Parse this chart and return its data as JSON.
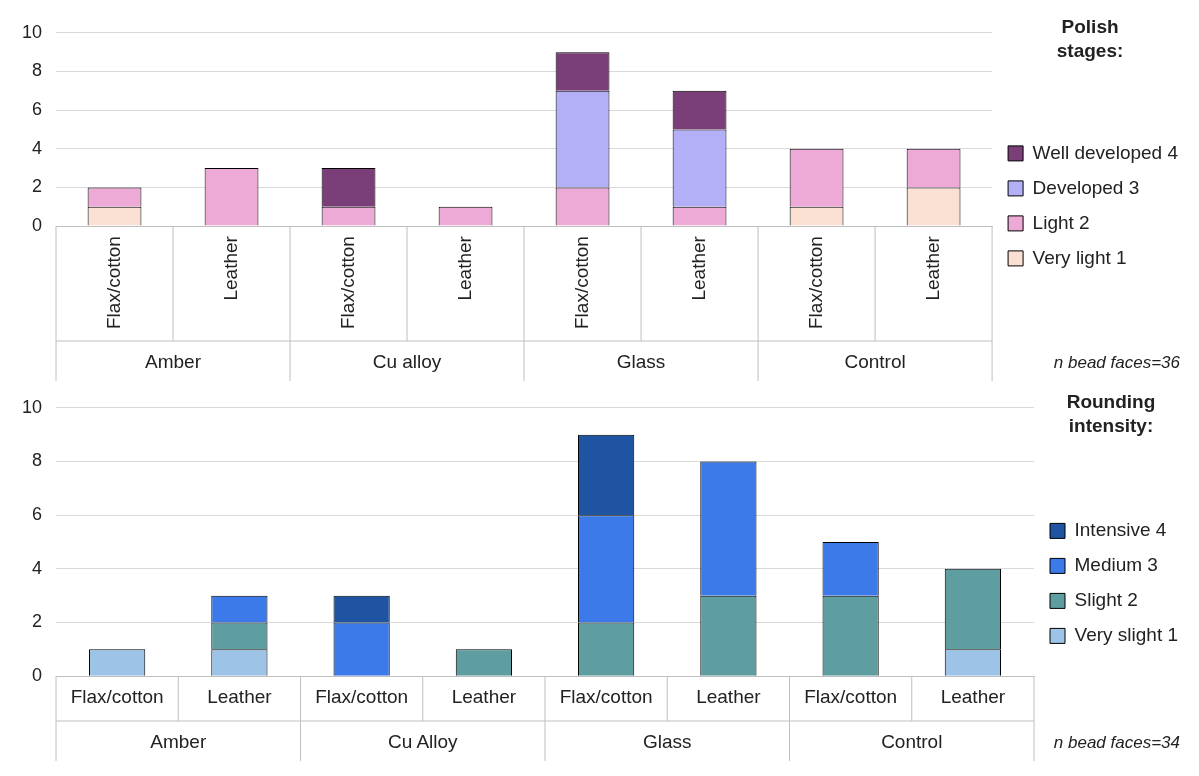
{
  "chart_data": [
    {
      "type": "bar",
      "stacked": true,
      "categories": [
        "Flax/cotton",
        "Leather",
        "Flax/cotton",
        "Leather",
        "Flax/cotton",
        "Leather",
        "Flax/cotton",
        "Leather"
      ],
      "series": [
        {
          "name": "Very light 1",
          "color": "#f9e0d2",
          "values": [
            1,
            0,
            0,
            0,
            0,
            0,
            1,
            2
          ]
        },
        {
          "name": "Light 2",
          "color": "#eeaad6",
          "values": [
            1,
            3,
            1,
            1,
            2,
            1,
            3,
            2
          ]
        },
        {
          "name": "Developed 3",
          "color": "#b3b0f7",
          "values": [
            0,
            0,
            0,
            0,
            5,
            4,
            0,
            0
          ]
        },
        {
          "name": "Well developed 4",
          "color": "#7a3f78",
          "values": [
            0,
            0,
            2,
            0,
            2,
            2,
            0,
            0
          ]
        }
      ],
      "ylim": [
        0,
        10
      ],
      "yticks": [
        0,
        2,
        4,
        6,
        8,
        10
      ],
      "grid": "y",
      "legend": "right",
      "legend_title": "Polish stages:",
      "annotations": [
        "Amber",
        "Cu alloy",
        "Glass",
        "Control",
        "n bead faces=36"
      ]
    },
    {
      "type": "bar",
      "stacked": true,
      "categories": [
        "Flax/cotton",
        "Leather",
        "Flax/cotton",
        "Leather",
        "Flax/cotton",
        "Leather",
        "Flax/cotton",
        "Leather"
      ],
      "series": [
        {
          "name": "Very slight 1",
          "color": "#9dc3e6",
          "values": [
            1,
            1,
            0,
            0,
            0,
            0,
            0,
            1
          ]
        },
        {
          "name": "Slight 2",
          "color": "#5f9ea0",
          "values": [
            0,
            1,
            0,
            1,
            2,
            3,
            3,
            3
          ]
        },
        {
          "name": "Medium 3",
          "color": "#3b7ae8",
          "values": [
            0,
            1,
            2,
            0,
            4,
            5,
            2,
            0
          ]
        },
        {
          "name": "Intensive 4",
          "color": "#1f54a3",
          "values": [
            0,
            0,
            1,
            0,
            3,
            0,
            0,
            0
          ]
        }
      ],
      "ylim": [
        0,
        10
      ],
      "yticks": [
        0,
        2,
        4,
        6,
        8,
        10
      ],
      "grid": "y",
      "legend": "right",
      "legend_title": "Rounding intensity:",
      "annotations": [
        "Amber",
        "Cu Alloy",
        "Glass",
        "Control",
        "n bead faces=34"
      ]
    }
  ]
}
